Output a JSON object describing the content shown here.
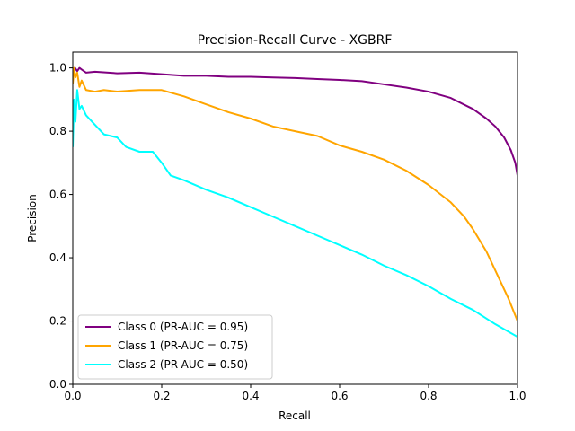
{
  "chart_data": {
    "type": "line",
    "title": "Precision-Recall Curve - XGBRF",
    "xlabel": "Recall",
    "ylabel": "Precision",
    "xlim": [
      0.0,
      1.0
    ],
    "ylim": [
      0.0,
      1.05
    ],
    "x_ticks": [
      "0.0",
      "0.2",
      "0.4",
      "0.6",
      "0.8",
      "1.0"
    ],
    "y_ticks": [
      "0.0",
      "0.2",
      "0.4",
      "0.6",
      "0.8",
      "1.0"
    ],
    "grid": false,
    "legend_position": "lower-left",
    "series": [
      {
        "name": "Class 0 (PR-AUC = 0.95)",
        "color": "#800080",
        "points": [
          [
            0.0,
            0.98
          ],
          [
            0.005,
            1.0
          ],
          [
            0.01,
            0.99
          ],
          [
            0.015,
            1.0
          ],
          [
            0.02,
            0.995
          ],
          [
            0.03,
            0.985
          ],
          [
            0.05,
            0.988
          ],
          [
            0.08,
            0.985
          ],
          [
            0.1,
            0.983
          ],
          [
            0.15,
            0.985
          ],
          [
            0.2,
            0.98
          ],
          [
            0.25,
            0.975
          ],
          [
            0.3,
            0.975
          ],
          [
            0.35,
            0.972
          ],
          [
            0.4,
            0.972
          ],
          [
            0.45,
            0.97
          ],
          [
            0.5,
            0.968
          ],
          [
            0.55,
            0.965
          ],
          [
            0.6,
            0.962
          ],
          [
            0.65,
            0.958
          ],
          [
            0.7,
            0.948
          ],
          [
            0.75,
            0.938
          ],
          [
            0.8,
            0.925
          ],
          [
            0.85,
            0.905
          ],
          [
            0.9,
            0.87
          ],
          [
            0.93,
            0.84
          ],
          [
            0.95,
            0.815
          ],
          [
            0.97,
            0.78
          ],
          [
            0.985,
            0.74
          ],
          [
            0.995,
            0.7
          ],
          [
            1.0,
            0.66
          ]
        ]
      },
      {
        "name": "Class 1 (PR-AUC = 0.75)",
        "color": "#FFA500",
        "points": [
          [
            0.0,
            0.95
          ],
          [
            0.003,
            1.0
          ],
          [
            0.006,
            0.97
          ],
          [
            0.01,
            0.985
          ],
          [
            0.015,
            0.94
          ],
          [
            0.02,
            0.96
          ],
          [
            0.03,
            0.93
          ],
          [
            0.05,
            0.925
          ],
          [
            0.07,
            0.93
          ],
          [
            0.1,
            0.925
          ],
          [
            0.15,
            0.93
          ],
          [
            0.2,
            0.93
          ],
          [
            0.25,
            0.91
          ],
          [
            0.3,
            0.885
          ],
          [
            0.35,
            0.86
          ],
          [
            0.4,
            0.84
          ],
          [
            0.45,
            0.815
          ],
          [
            0.5,
            0.8
          ],
          [
            0.55,
            0.785
          ],
          [
            0.6,
            0.755
          ],
          [
            0.65,
            0.735
          ],
          [
            0.7,
            0.71
          ],
          [
            0.75,
            0.675
          ],
          [
            0.8,
            0.63
          ],
          [
            0.85,
            0.575
          ],
          [
            0.88,
            0.53
          ],
          [
            0.9,
            0.49
          ],
          [
            0.93,
            0.42
          ],
          [
            0.96,
            0.33
          ],
          [
            0.98,
            0.27
          ],
          [
            1.0,
            0.2
          ]
        ]
      },
      {
        "name": "Class 2 (PR-AUC = 0.50)",
        "color": "#00FFFF",
        "points": [
          [
            0.0,
            0.75
          ],
          [
            0.003,
            0.9
          ],
          [
            0.006,
            0.83
          ],
          [
            0.01,
            0.93
          ],
          [
            0.015,
            0.87
          ],
          [
            0.02,
            0.88
          ],
          [
            0.03,
            0.85
          ],
          [
            0.05,
            0.82
          ],
          [
            0.07,
            0.79
          ],
          [
            0.1,
            0.78
          ],
          [
            0.12,
            0.75
          ],
          [
            0.15,
            0.735
          ],
          [
            0.18,
            0.735
          ],
          [
            0.2,
            0.7
          ],
          [
            0.22,
            0.66
          ],
          [
            0.25,
            0.645
          ],
          [
            0.3,
            0.615
          ],
          [
            0.35,
            0.59
          ],
          [
            0.4,
            0.56
          ],
          [
            0.45,
            0.53
          ],
          [
            0.5,
            0.5
          ],
          [
            0.55,
            0.47
          ],
          [
            0.6,
            0.44
          ],
          [
            0.65,
            0.41
          ],
          [
            0.7,
            0.375
          ],
          [
            0.75,
            0.345
          ],
          [
            0.8,
            0.31
          ],
          [
            0.85,
            0.27
          ],
          [
            0.9,
            0.235
          ],
          [
            0.95,
            0.19
          ],
          [
            1.0,
            0.15
          ]
        ]
      }
    ]
  }
}
